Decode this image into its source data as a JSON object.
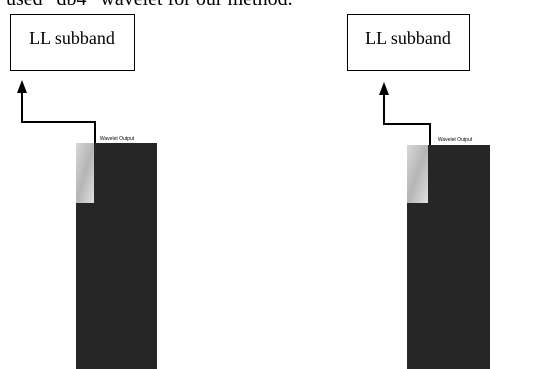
{
  "text": {
    "caption_fragment": "used “db4” wavelet for our method."
  },
  "figures": [
    {
      "label": "LL subband",
      "image_title": "Wavelet Output"
    },
    {
      "label": "LL subband",
      "image_title": "Wavelet Output"
    }
  ]
}
